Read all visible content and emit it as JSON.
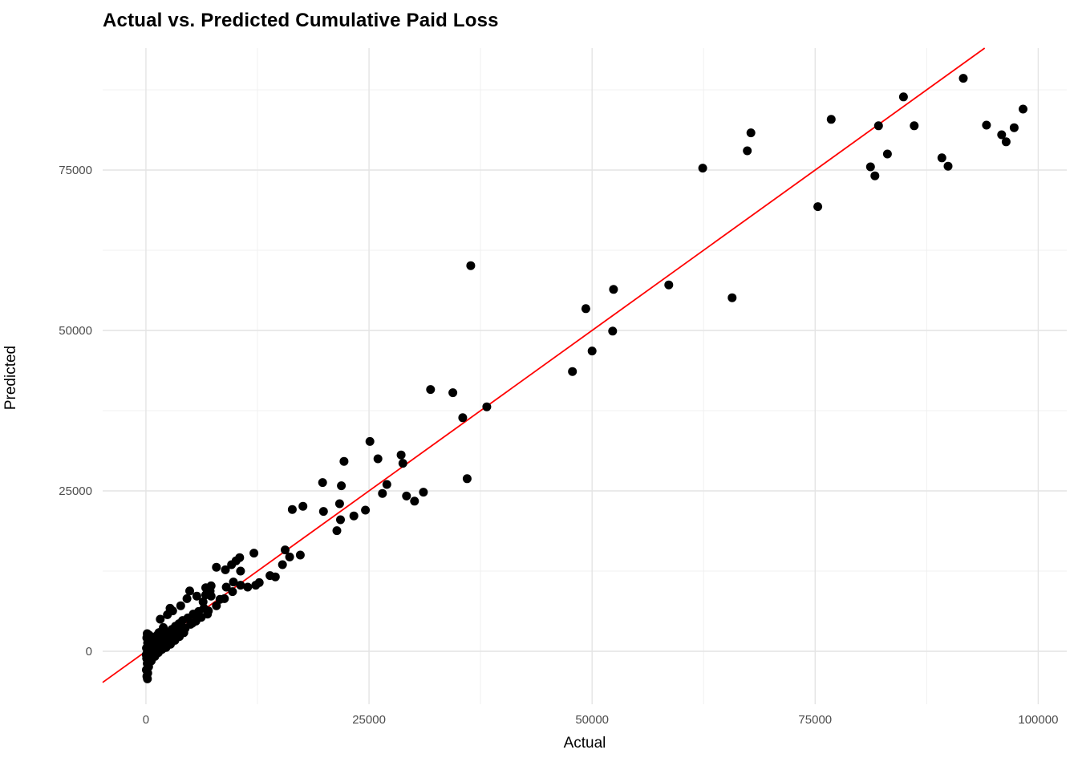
{
  "chart_data": {
    "type": "scatter",
    "title": "Actual vs. Predicted Cumulative Paid Loss",
    "xlabel": "Actual",
    "ylabel": "Predicted",
    "xlim": [
      -4850,
      103200
    ],
    "ylim": [
      -8250,
      94000
    ],
    "x_major_ticks": [
      0,
      25000,
      50000,
      75000,
      100000
    ],
    "x_tick_labels": [
      "0",
      "25000",
      "50000",
      "75000",
      "100000"
    ],
    "y_major_ticks": [
      0,
      25000,
      50000,
      75000
    ],
    "y_tick_labels": [
      "0",
      "25000",
      "50000",
      "75000"
    ],
    "x_minor_ticks": [
      12500,
      37500,
      62500,
      87500
    ],
    "y_minor_ticks": [
      12500,
      37500,
      62500,
      87500
    ],
    "grid": true,
    "legend": "none",
    "reference_line": {
      "name": "identity-line",
      "x1": -4850,
      "y1": -4850,
      "x2": 94000,
      "y2": 94000,
      "color": "#ff0000",
      "width": 1.8
    },
    "point_style": {
      "color": "#000000",
      "radius": 5.5
    },
    "colors": {
      "grid_major": "#e4e4e4",
      "grid_minor": "#f0f0f0",
      "tick_label": "#4d4d4d",
      "title": "#000000",
      "background": "#ffffff"
    },
    "points": [
      [
        91600,
        89300
      ],
      [
        84900,
        86400
      ],
      [
        76800,
        82900
      ],
      [
        82100,
        81900
      ],
      [
        86100,
        81900
      ],
      [
        67800,
        80800
      ],
      [
        94200,
        82000
      ],
      [
        98300,
        84500
      ],
      [
        97300,
        81600
      ],
      [
        95900,
        80500
      ],
      [
        96400,
        79400
      ],
      [
        67400,
        78000
      ],
      [
        83100,
        77500
      ],
      [
        89200,
        76900
      ],
      [
        89900,
        75600
      ],
      [
        62400,
        75300
      ],
      [
        81200,
        75500
      ],
      [
        81700,
        74100
      ],
      [
        75300,
        69300
      ],
      [
        36400,
        60100
      ],
      [
        52400,
        56400
      ],
      [
        58600,
        57100
      ],
      [
        65700,
        55100
      ],
      [
        49300,
        53400
      ],
      [
        52300,
        49900
      ],
      [
        50000,
        46800
      ],
      [
        47800,
        43600
      ],
      [
        34400,
        40300
      ],
      [
        31900,
        40800
      ],
      [
        38200,
        38100
      ],
      [
        35500,
        36400
      ],
      [
        36000,
        26900
      ],
      [
        25100,
        32700
      ],
      [
        26000,
        30000
      ],
      [
        22200,
        29600
      ],
      [
        28600,
        30600
      ],
      [
        28800,
        29300
      ],
      [
        19800,
        26300
      ],
      [
        21900,
        25800
      ],
      [
        27000,
        26000
      ],
      [
        26500,
        24600
      ],
      [
        29200,
        24200
      ],
      [
        30100,
        23400
      ],
      [
        31100,
        24800
      ],
      [
        19900,
        21800
      ],
      [
        21700,
        23000
      ],
      [
        21800,
        20500
      ],
      [
        23300,
        21100
      ],
      [
        24600,
        22000
      ],
      [
        21400,
        18800
      ],
      [
        17600,
        22600
      ],
      [
        16400,
        22100
      ],
      [
        12100,
        15300
      ],
      [
        15600,
        15800
      ],
      [
        16100,
        14700
      ],
      [
        17300,
        15000
      ],
      [
        15300,
        13500
      ],
      [
        13900,
        11800
      ],
      [
        14500,
        11600
      ],
      [
        12700,
        10700
      ],
      [
        12300,
        10300
      ],
      [
        11400,
        10000
      ],
      [
        10500,
        14600
      ],
      [
        10100,
        14100
      ],
      [
        10600,
        12500
      ],
      [
        9600,
        13500
      ],
      [
        8900,
        12700
      ],
      [
        7900,
        13100
      ],
      [
        9800,
        10800
      ],
      [
        9000,
        10000
      ],
      [
        7200,
        9400
      ],
      [
        6700,
        8800
      ],
      [
        8300,
        8100
      ],
      [
        4900,
        9400
      ],
      [
        5700,
        8600
      ],
      [
        6700,
        9900
      ],
      [
        7300,
        10200
      ],
      [
        7300,
        8600
      ],
      [
        6400,
        7700
      ],
      [
        4600,
        8200
      ],
      [
        3900,
        7100
      ],
      [
        3000,
        6300
      ],
      [
        2400,
        5700
      ],
      [
        1600,
        5000
      ],
      [
        2700,
        6700
      ],
      [
        1600,
        2400
      ],
      [
        2500,
        1500
      ],
      [
        3400,
        2400
      ],
      [
        4300,
        3400
      ],
      [
        5200,
        4400
      ],
      [
        6100,
        5300
      ],
      [
        7000,
        6300
      ],
      [
        7900,
        7100
      ],
      [
        8800,
        8200
      ],
      [
        9700,
        9300
      ],
      [
        10600,
        10300
      ],
      [
        500,
        -300
      ],
      [
        700,
        400
      ],
      [
        900,
        1000
      ],
      [
        1100,
        100
      ],
      [
        1300,
        1400
      ],
      [
        1500,
        700
      ],
      [
        1700,
        1900
      ],
      [
        1900,
        1100
      ],
      [
        2100,
        2400
      ],
      [
        2300,
        1600
      ],
      [
        2500,
        2900
      ],
      [
        2700,
        2000
      ],
      [
        2900,
        3400
      ],
      [
        3100,
        2400
      ],
      [
        3300,
        3900
      ],
      [
        3500,
        2800
      ],
      [
        3700,
        4300
      ],
      [
        3900,
        3200
      ],
      [
        4100,
        4800
      ],
      [
        4400,
        3600
      ],
      [
        4700,
        5200
      ],
      [
        5000,
        4200
      ],
      [
        5300,
        5800
      ],
      [
        5600,
        4700
      ],
      [
        5900,
        6200
      ],
      [
        6200,
        5300
      ],
      [
        6500,
        6700
      ],
      [
        6900,
        5800
      ],
      [
        750,
        1700
      ],
      [
        1250,
        2500
      ],
      [
        1750,
        3100
      ],
      [
        2250,
        600
      ],
      [
        2750,
        1100
      ],
      [
        3250,
        1700
      ],
      [
        3750,
        2300
      ],
      [
        4250,
        2900
      ],
      [
        475,
        900
      ],
      [
        950,
        1900
      ],
      [
        1450,
        2900
      ],
      [
        1950,
        3700
      ],
      [
        600,
        -1500
      ],
      [
        1000,
        -800
      ],
      [
        1400,
        -200
      ],
      [
        1800,
        300
      ],
      [
        2200,
        900
      ],
      [
        100,
        -3900
      ],
      [
        200,
        -3400
      ],
      [
        50,
        -2900
      ],
      [
        300,
        -2400
      ],
      [
        150,
        -1900
      ],
      [
        250,
        -1500
      ],
      [
        80,
        -1100
      ],
      [
        350,
        -700
      ],
      [
        120,
        -300
      ],
      [
        220,
        100
      ],
      [
        60,
        500
      ],
      [
        320,
        900
      ],
      [
        180,
        1300
      ],
      [
        280,
        1700
      ],
      [
        90,
        2100
      ],
      [
        380,
        2500
      ],
      [
        140,
        2750
      ],
      [
        400,
        -150
      ],
      [
        30,
        -550
      ],
      [
        260,
        -2000
      ],
      [
        330,
        1500
      ],
      [
        170,
        -4300
      ]
    ]
  }
}
